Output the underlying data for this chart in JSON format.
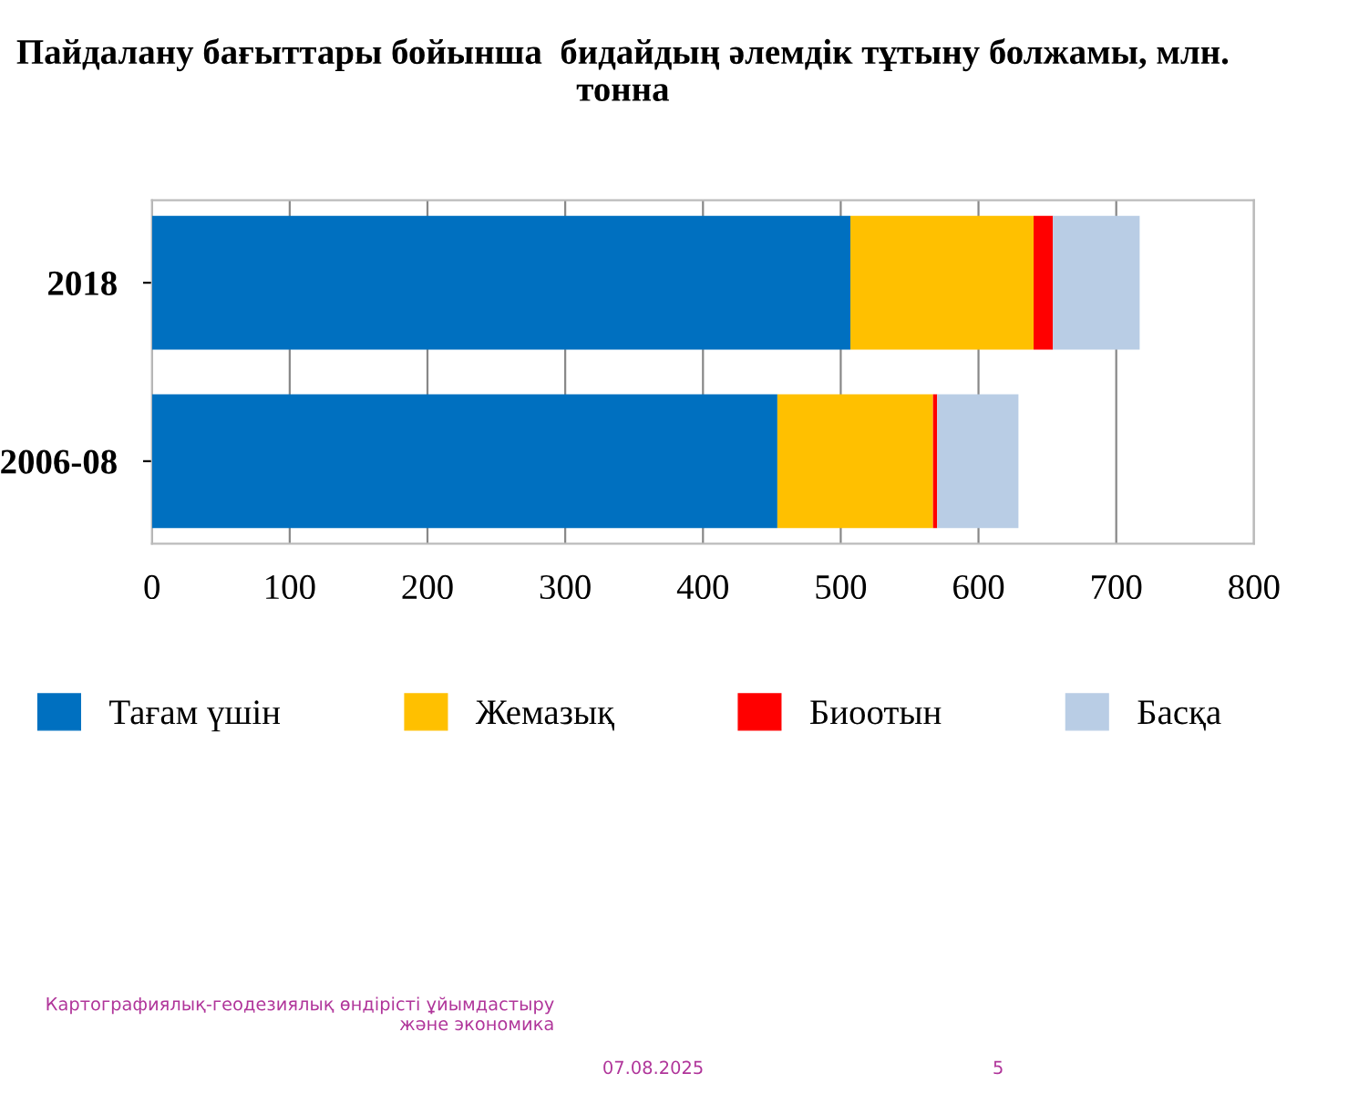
{
  "chart_data": {
    "type": "bar",
    "orientation": "horizontal",
    "stacked": true,
    "title": "Пайдалану бағыттары бойынша  бидайдың әлемдік тұтыну болжамы, млн.\nтонна",
    "categories": [
      "2018",
      "2006-08"
    ],
    "series": [
      {
        "name": "Тағам үшін",
        "color": "#0070c0",
        "values": [
          507,
          454
        ]
      },
      {
        "name": "Жемазық",
        "color": "#ffc000",
        "values": [
          133,
          113
        ]
      },
      {
        "name": "Биоотын",
        "color": "#ff0000",
        "values": [
          14,
          3
        ]
      },
      {
        "name": "Басқа",
        "color": "#b9cde5",
        "values": [
          63,
          59
        ]
      }
    ],
    "xlim": [
      0,
      800
    ],
    "xticks": [
      0,
      100,
      200,
      300,
      400,
      500,
      600,
      700,
      800
    ],
    "grid": "x",
    "legend": "bottom",
    "annotations": [
      "Картографиялық-геодезиялық өндірісті ұйымдастыру\nжәне экономика",
      "07.08.2025",
      "5"
    ]
  }
}
